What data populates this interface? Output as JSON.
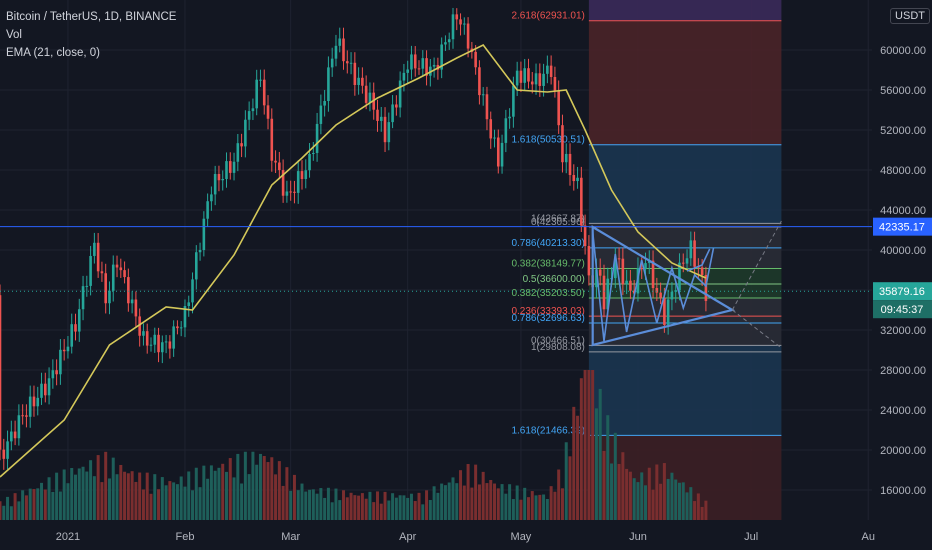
{
  "legend": {
    "symbol": "Bitcoin / TetherUS, 1D, BINANCE",
    "vol": "Vol",
    "ema": "EMA (21, close, 0)"
  },
  "currency_label": "USDT",
  "price_badges": {
    "hline": "42335.17",
    "last": "35879.16",
    "countdown": "09:45:37"
  },
  "colors": {
    "background": "#131722",
    "up": "#26a69a",
    "down": "#ef5350",
    "ema": "#d4c85a",
    "hline": "#2962ff",
    "triangle": "#5b8dd9"
  },
  "chart_data": {
    "type": "candlestick",
    "y_ticks": [
      "16000.00",
      "20000.00",
      "24000.00",
      "28000.00",
      "32000.00",
      "36000.00",
      "40000.00",
      "44000.00",
      "48000.00",
      "52000.00",
      "56000.00",
      "60000.00"
    ],
    "x_ticks": [
      {
        "label": "2021",
        "date": "2021-01-01"
      },
      {
        "label": "Feb",
        "date": "2021-02-01"
      },
      {
        "label": "Mar",
        "date": "2021-03-01"
      },
      {
        "label": "Apr",
        "date": "2021-04-01"
      },
      {
        "label": "May",
        "date": "2021-05-01"
      },
      {
        "label": "Jun",
        "date": "2021-06-01"
      },
      {
        "label": "Jul",
        "date": "2021-07-01"
      },
      {
        "label": "Au",
        "date": "2021-08-01"
      }
    ],
    "ylim": [
      13000,
      65000
    ],
    "xlim": [
      "2020-12-14",
      "2021-08-02"
    ],
    "grid": true,
    "horizontal_line": 42335.17,
    "last_price": 35879.16,
    "close_path": [
      [
        "2020-12-14",
        19200
      ],
      [
        "2020-12-20",
        23500
      ],
      [
        "2020-12-27",
        26800
      ],
      [
        "2021-01-03",
        32500
      ],
      [
        "2021-01-08",
        40500
      ],
      [
        "2021-01-11",
        35000
      ],
      [
        "2021-01-14",
        39000
      ],
      [
        "2021-01-21",
        31000
      ],
      [
        "2021-01-27",
        30400
      ],
      [
        "2021-02-01",
        33500
      ],
      [
        "2021-02-08",
        46400
      ],
      [
        "2021-02-14",
        48800
      ],
      [
        "2021-02-21",
        57400
      ],
      [
        "2021-02-24",
        49700
      ],
      [
        "2021-02-28",
        45200
      ],
      [
        "2021-03-06",
        48800
      ],
      [
        "2021-03-13",
        61000
      ],
      [
        "2021-03-17",
        58000
      ],
      [
        "2021-03-23",
        54300
      ],
      [
        "2021-03-26",
        51500
      ],
      [
        "2021-04-01",
        58800
      ],
      [
        "2021-04-08",
        58000
      ],
      [
        "2021-04-14",
        63600
      ],
      [
        "2021-04-17",
        61000
      ],
      [
        "2021-04-23",
        51700
      ],
      [
        "2021-04-25",
        49000
      ],
      [
        "2021-04-30",
        57700
      ],
      [
        "2021-05-05",
        56800
      ],
      [
        "2021-05-09",
        58200
      ],
      [
        "2021-05-12",
        49500
      ],
      [
        "2021-05-16",
        46400
      ],
      [
        "2021-05-19",
        37000
      ],
      [
        "2021-05-22",
        37500
      ],
      [
        "2021-05-23",
        34700
      ],
      [
        "2021-05-26",
        39300
      ],
      [
        "2021-05-30",
        35600
      ],
      [
        "2021-06-03",
        39200
      ],
      [
        "2021-06-08",
        33400
      ],
      [
        "2021-06-13",
        39000
      ],
      [
        "2021-06-15",
        40100
      ],
      [
        "2021-06-17",
        38100
      ],
      [
        "2021-06-19",
        35800
      ]
    ],
    "ema_path": [
      [
        "2020-12-14",
        17300
      ],
      [
        "2020-12-31",
        23000
      ],
      [
        "2021-01-12",
        30500
      ],
      [
        "2021-01-27",
        34300
      ],
      [
        "2021-02-03",
        34000
      ],
      [
        "2021-02-14",
        39500
      ],
      [
        "2021-02-24",
        46500
      ],
      [
        "2021-03-04",
        49200
      ],
      [
        "2021-03-13",
        52500
      ],
      [
        "2021-03-24",
        55200
      ],
      [
        "2021-04-04",
        57200
      ],
      [
        "2021-04-14",
        59200
      ],
      [
        "2021-04-21",
        60500
      ],
      [
        "2021-04-30",
        56000
      ],
      [
        "2021-05-08",
        55800
      ],
      [
        "2021-05-13",
        56000
      ],
      [
        "2021-05-18",
        52000
      ],
      [
        "2021-05-25",
        46000
      ],
      [
        "2021-06-01",
        41800
      ],
      [
        "2021-06-10",
        38700
      ],
      [
        "2021-06-19",
        37200
      ]
    ],
    "volume_max": 100,
    "volume_scale": [
      0,
      100
    ],
    "volume_path": [
      [
        "2020-12-14",
        10
      ],
      [
        "2021-01-04",
        30
      ],
      [
        "2021-01-11",
        35
      ],
      [
        "2021-01-20",
        25
      ],
      [
        "2021-01-29",
        22
      ],
      [
        "2021-02-08",
        30
      ],
      [
        "2021-02-22",
        38
      ],
      [
        "2021-03-05",
        18
      ],
      [
        "2021-03-18",
        15
      ],
      [
        "2021-04-05",
        14
      ],
      [
        "2021-04-18",
        30
      ],
      [
        "2021-04-25",
        20
      ],
      [
        "2021-05-08",
        14
      ],
      [
        "2021-05-12",
        30
      ],
      [
        "2021-05-19",
        100
      ],
      [
        "2021-05-23",
        58
      ],
      [
        "2021-05-31",
        24
      ],
      [
        "2021-06-08",
        30
      ],
      [
        "2021-06-19",
        10
      ]
    ],
    "fib_retracement": {
      "date_range": [
        "2021-05-19",
        "2021-07-09"
      ],
      "levels": [
        {
          "label": "2.618(62931.01)",
          "price": 62931.01,
          "color": "#ef5350"
        },
        {
          "label": "1.618(50530.51)",
          "price": 50530.51,
          "color": "#42a5f5"
        },
        {
          "label": "0(42305.96)",
          "price": 42305.96,
          "color": "#9598a1"
        },
        {
          "label": "1(42667.87)",
          "price": 42667.87,
          "color": "#9598a1"
        },
        {
          "label": "0.786(40213.30)",
          "price": 40213.3,
          "color": "#42a5f5"
        },
        {
          "label": "0.382(38149.77)",
          "price": 38149.77,
          "color": "#66bb6a"
        },
        {
          "label": "0.5(36600.00)",
          "price": 36600.0,
          "color": "#81c784"
        },
        {
          "label": "0.382(35203.50)",
          "price": 35203.5,
          "color": "#66bb6a"
        },
        {
          "label": "0.236(33393.03)",
          "price": 33393.03,
          "color": "#ef5350"
        },
        {
          "label": "0.786(32696.63)",
          "price": 32696.63,
          "color": "#42a5f5"
        },
        {
          "label": "0(30466.51)",
          "price": 30466.51,
          "color": "#9598a1"
        },
        {
          "label": "1(29808.08)",
          "price": 29808.08,
          "color": "#9598a1"
        },
        {
          "label": "1.618(21466.39)",
          "price": 21466.39,
          "color": "#42a5f5"
        }
      ]
    },
    "triangle": [
      [
        "2021-05-20",
        42300
      ],
      [
        "2021-06-26",
        34000
      ],
      [
        "2021-05-20",
        30500
      ]
    ],
    "zigzag": [
      [
        "2021-05-20",
        41800
      ],
      [
        "2021-05-23",
        30900
      ],
      [
        "2021-05-26",
        39600
      ],
      [
        "2021-05-29",
        31800
      ],
      [
        "2021-06-02",
        39000
      ],
      [
        "2021-06-06",
        32700
      ],
      [
        "2021-06-10",
        38200
      ],
      [
        "2021-06-13",
        34200
      ],
      [
        "2021-06-16",
        37500
      ],
      [
        "2021-06-19",
        36400
      ],
      [
        "2021-06-21",
        40200
      ]
    ],
    "annotation_arrow": [
      [
        "2021-06-14",
        37900
      ],
      [
        "2021-06-18",
        38500
      ],
      [
        "2021-06-20",
        40100
      ]
    ]
  }
}
